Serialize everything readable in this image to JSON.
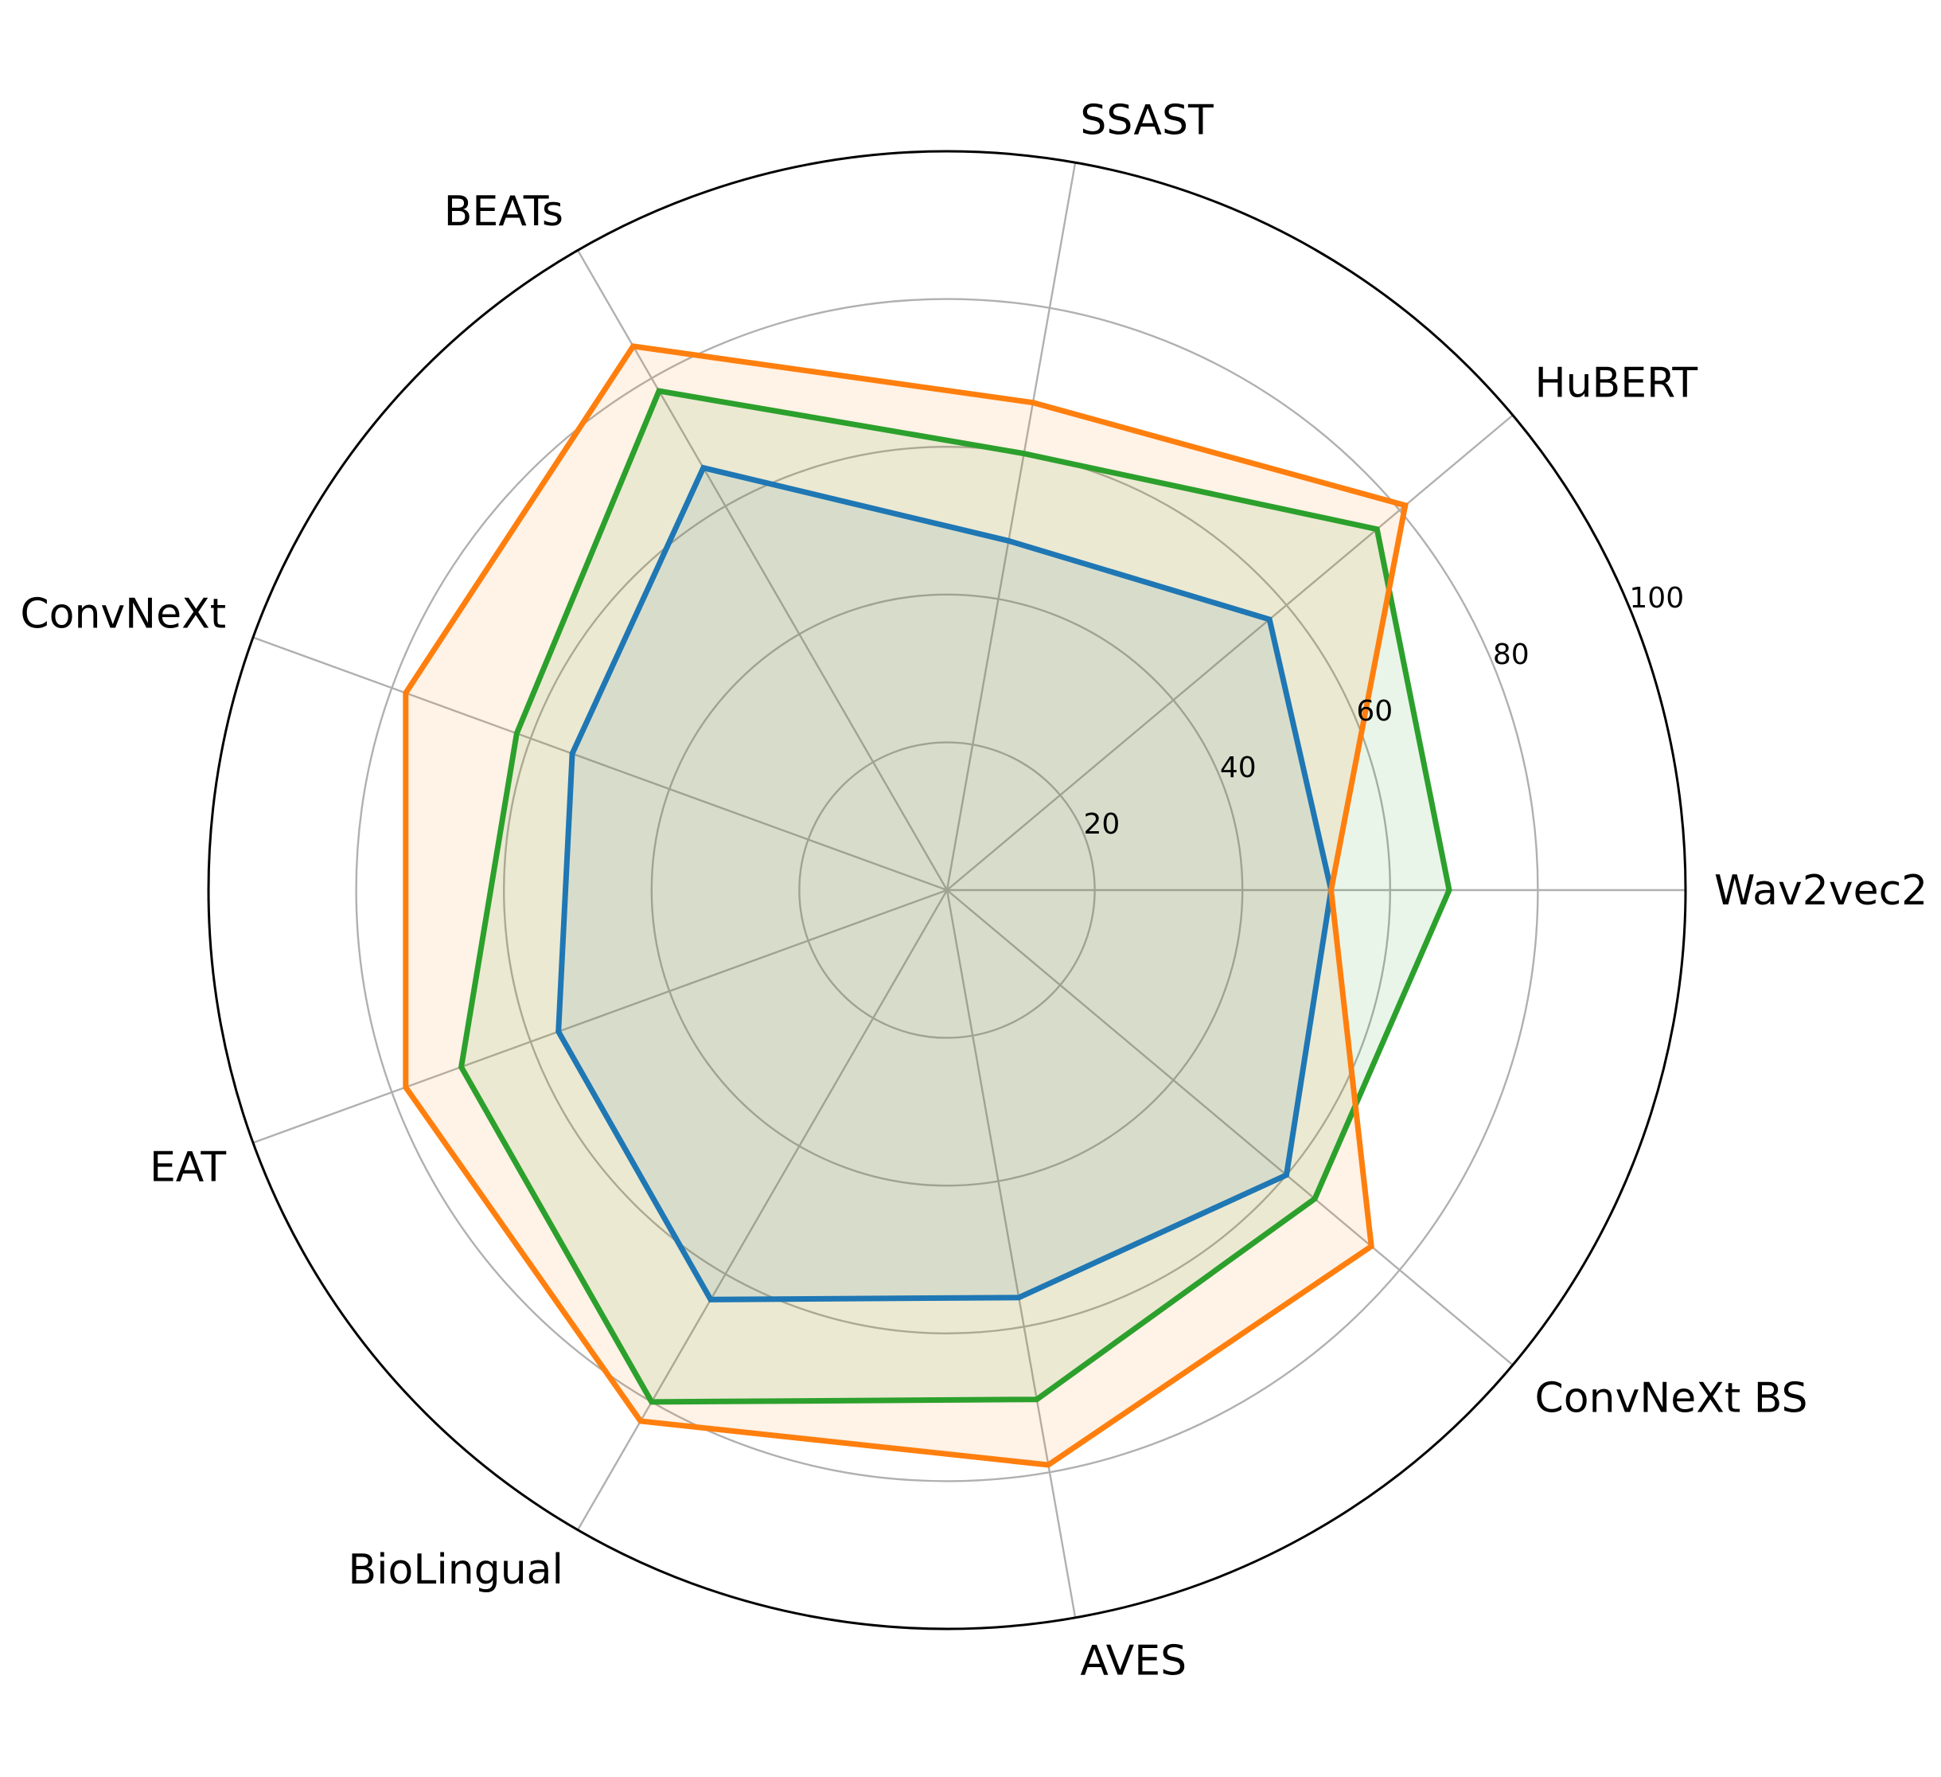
{
  "chart_data": {
    "type": "radar",
    "categories": [
      "Wav2vec2",
      "HuBERT",
      "SSAST",
      "BEATs",
      "ConvNeXt",
      "EAT",
      "BioLingual",
      "AVES",
      "ConvNeXt BS"
    ],
    "series": [
      {
        "color": "#1f77b4",
        "values": [
          52,
          57,
          48,
          66,
          54,
          56,
          64,
          56,
          60
        ]
      },
      {
        "color": "#2ca02c",
        "values": [
          68,
          76,
          60,
          78,
          62,
          70,
          80,
          70,
          65
        ]
      },
      {
        "color": "#ff7f0e",
        "values": [
          52,
          81,
          67,
          85,
          78,
          78,
          83,
          79,
          75
        ]
      }
    ],
    "r_ticks": [
      20,
      40,
      60,
      80
    ],
    "r_max": 100,
    "r_max_label": "100",
    "grid": true,
    "legend": "none"
  }
}
